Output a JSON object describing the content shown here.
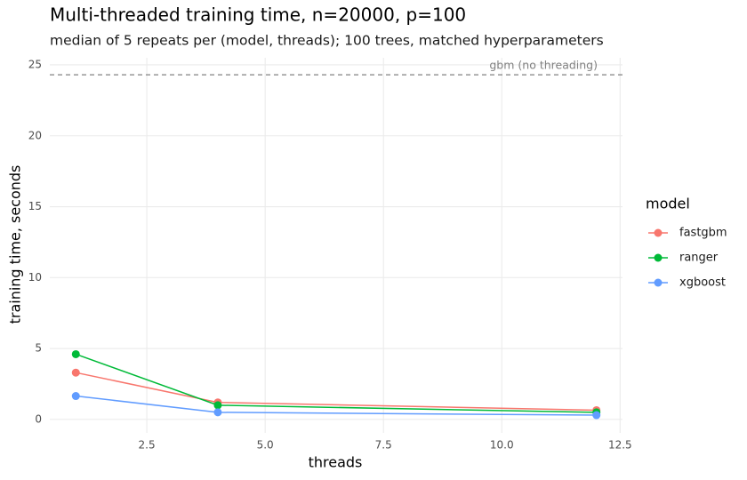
{
  "chart_data": {
    "type": "line",
    "title": "Multi-threaded training time, n=20000, p=100",
    "subtitle": "median of 5 repeats per (model, threads); 100 trees, matched hyperparameters",
    "x_label": "threads",
    "y_label": "training time, seconds",
    "x": [
      1,
      4,
      12
    ],
    "series": [
      {
        "name": "fastgbm",
        "color": "#F8766D",
        "values": [
          3.3,
          1.2,
          0.65
        ]
      },
      {
        "name": "ranger",
        "color": "#00BA38",
        "values": [
          4.6,
          1.0,
          0.5
        ]
      },
      {
        "name": "xgboost",
        "color": "#619CFF",
        "values": [
          1.65,
          0.5,
          0.3
        ]
      }
    ],
    "hline": {
      "value": 24.3,
      "label": "gbm (no threading)",
      "color": "#808080"
    },
    "xlim": [
      0.45,
      12.55
    ],
    "xticks": [
      2.5,
      {
        "value": 5,
        "label": "5.0"
      },
      7.5,
      {
        "value": 10,
        "label": "10.0"
      },
      12.5
    ],
    "ylim": [
      -0.95,
      25.5
    ],
    "yticks": [
      0,
      5,
      10,
      15,
      20,
      25
    ],
    "grid": true,
    "legend_title": "model",
    "legend_position": "right"
  }
}
